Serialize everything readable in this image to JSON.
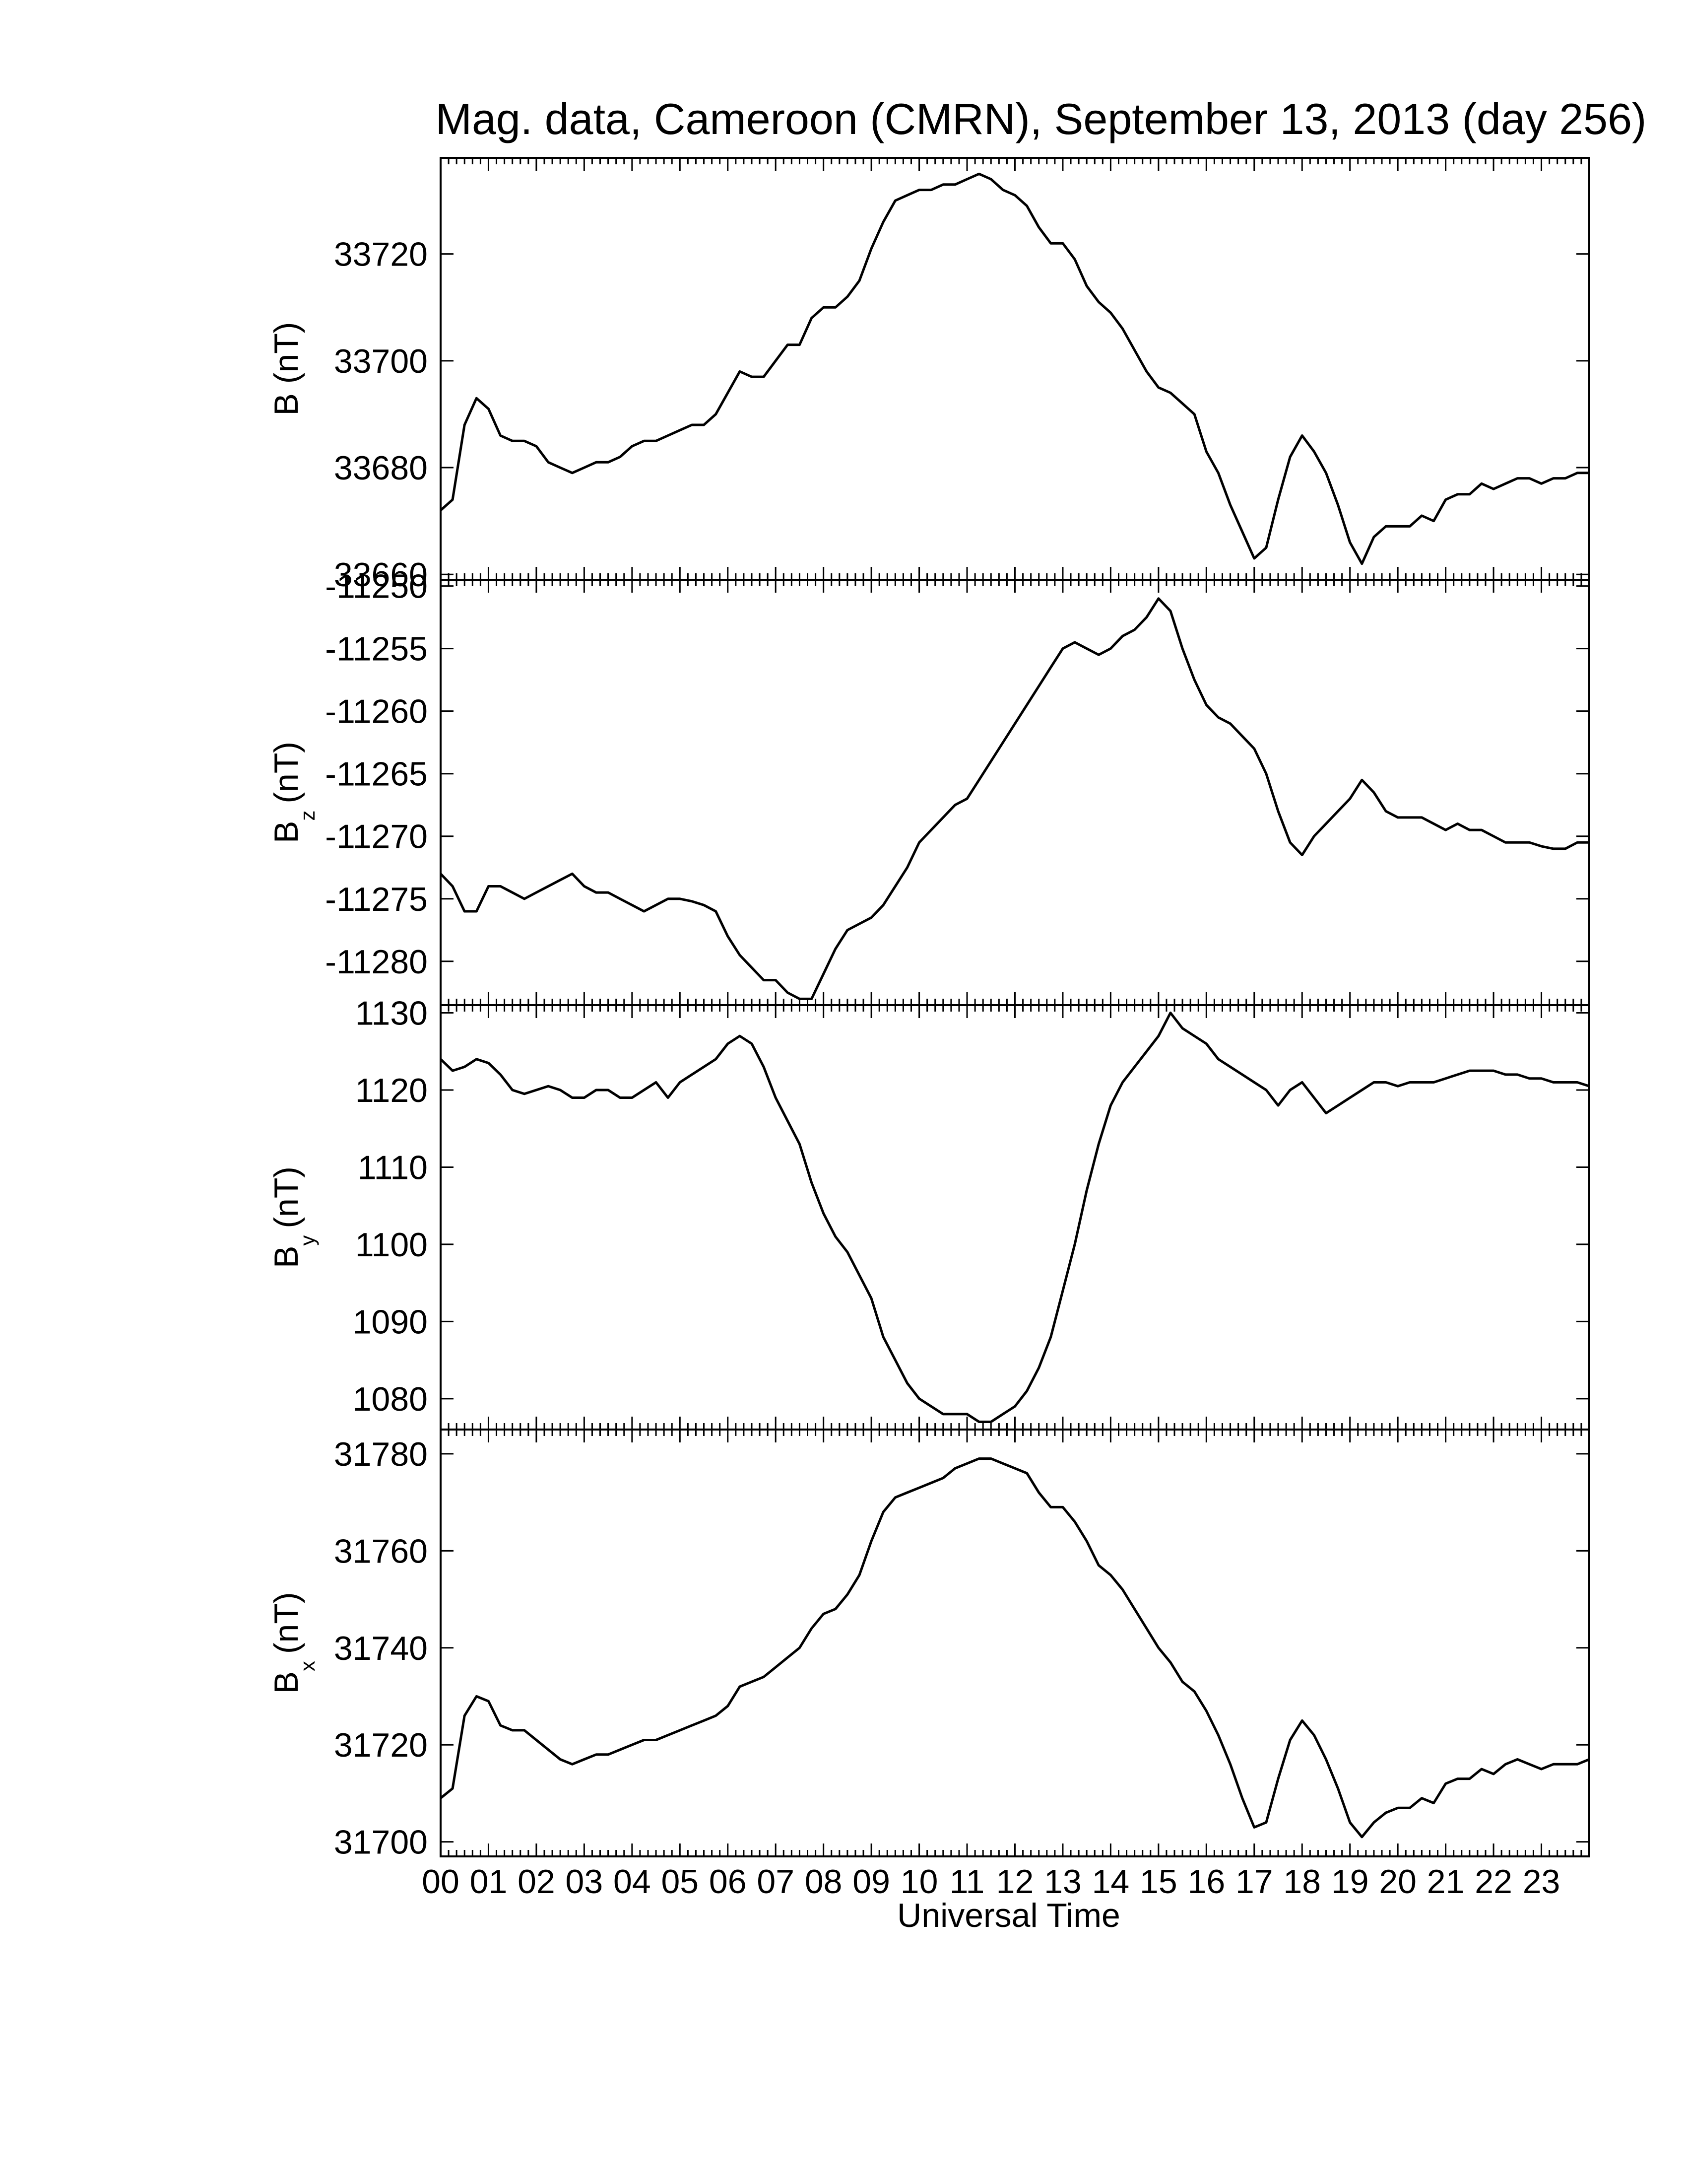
{
  "chart_data": {
    "type": "line",
    "title": "Mag. data, Cameroon (CMRN), September 13, 2013 (day 256)",
    "xlabel": "Universal Time",
    "x_tick_labels": [
      "00",
      "01",
      "02",
      "03",
      "04",
      "05",
      "06",
      "07",
      "08",
      "09",
      "10",
      "11",
      "12",
      "13",
      "14",
      "15",
      "16",
      "17",
      "18",
      "19",
      "20",
      "21",
      "22",
      "23"
    ],
    "xlim": [
      0,
      24
    ],
    "panels": [
      {
        "ylabel_main": "B (nT)",
        "ylabel_sub": "",
        "ylim": [
          33659,
          33738
        ],
        "yticks": [
          33660,
          33680,
          33700,
          33720
        ],
        "x": [
          0,
          0.25,
          0.5,
          0.75,
          1.0,
          1.25,
          1.5,
          1.75,
          2.0,
          2.25,
          2.5,
          2.75,
          3.0,
          3.25,
          3.5,
          3.75,
          4.0,
          4.25,
          4.5,
          4.75,
          5.0,
          5.25,
          5.5,
          5.75,
          6.0,
          6.25,
          6.5,
          6.75,
          7.0,
          7.25,
          7.5,
          7.75,
          8.0,
          8.25,
          8.5,
          8.75,
          9.0,
          9.25,
          9.5,
          9.75,
          10.0,
          10.25,
          10.5,
          10.75,
          11.0,
          11.25,
          11.5,
          11.75,
          12.0,
          12.25,
          12.5,
          12.75,
          13.0,
          13.25,
          13.5,
          13.75,
          14.0,
          14.25,
          14.5,
          14.75,
          15.0,
          15.25,
          15.5,
          15.75,
          16.0,
          16.25,
          16.5,
          16.75,
          17.0,
          17.25,
          17.5,
          17.75,
          18.0,
          18.25,
          18.5,
          18.75,
          19.0,
          19.25,
          19.5,
          19.75,
          20.0,
          20.25,
          20.5,
          20.75,
          21.0,
          21.25,
          21.5,
          21.75,
          22.0,
          22.25,
          22.5,
          22.75,
          23.0,
          23.25,
          23.5,
          23.75,
          24.0
        ],
        "values": [
          33672,
          33674,
          33688,
          33693,
          33691,
          33686,
          33685,
          33685,
          33684,
          33681,
          33680,
          33679,
          33680,
          33681,
          33681,
          33682,
          33684,
          33685,
          33685,
          33686,
          33687,
          33688,
          33688,
          33690,
          33694,
          33698,
          33697,
          33697,
          33700,
          33703,
          33703,
          33708,
          33710,
          33710,
          33712,
          33715,
          33721,
          33726,
          33730,
          33731,
          33732,
          33732,
          33733,
          33733,
          33734,
          33735,
          33734,
          33732,
          33731,
          33729,
          33725,
          33722,
          33722,
          33719,
          33714,
          33711,
          33709,
          33706,
          33702,
          33698,
          33695,
          33694,
          33692,
          33690,
          33683,
          33679,
          33673,
          33668,
          33663,
          33665,
          33674,
          33682,
          33686,
          33683,
          33679,
          33673,
          33666,
          33662,
          33667,
          33669,
          33669,
          33669,
          33671,
          33670,
          33674,
          33675,
          33675,
          33677,
          33676,
          33677,
          33678,
          33678,
          33677,
          33678,
          33678,
          33679,
          33679
        ]
      },
      {
        "ylabel_main": "B",
        "ylabel_sub": "z",
        "ylabel_unit": "(nT)",
        "ylim": [
          -11283.5,
          -11249.5
        ],
        "yticks": [
          -11250,
          -11255,
          -11260,
          -11265,
          -11270,
          -11275,
          -11280
        ],
        "x": [
          0,
          0.25,
          0.5,
          0.75,
          1.0,
          1.25,
          1.5,
          1.75,
          2.0,
          2.25,
          2.5,
          2.75,
          3.0,
          3.25,
          3.5,
          3.75,
          4.0,
          4.25,
          4.5,
          4.75,
          5.0,
          5.25,
          5.5,
          5.75,
          6.0,
          6.25,
          6.5,
          6.75,
          7.0,
          7.25,
          7.5,
          7.75,
          8.0,
          8.25,
          8.5,
          8.75,
          9.0,
          9.25,
          9.5,
          9.75,
          10.0,
          10.25,
          10.5,
          10.75,
          11.0,
          11.25,
          11.5,
          11.75,
          12.0,
          12.25,
          12.5,
          12.75,
          13.0,
          13.25,
          13.5,
          13.75,
          14.0,
          14.25,
          14.5,
          14.75,
          15.0,
          15.25,
          15.5,
          15.75,
          16.0,
          16.25,
          16.5,
          16.75,
          17.0,
          17.25,
          17.5,
          17.75,
          18.0,
          18.25,
          18.5,
          18.75,
          19.0,
          19.25,
          19.5,
          19.75,
          20.0,
          20.25,
          20.5,
          20.75,
          21.0,
          21.25,
          21.5,
          21.75,
          22.0,
          22.25,
          22.5,
          22.75,
          23.0,
          23.25,
          23.5,
          23.75,
          24.0
        ],
        "values": [
          -11273,
          -11274,
          -11276,
          -11276,
          -11274,
          -11274,
          -11274.5,
          -11275,
          -11274.5,
          -11274,
          -11273.5,
          -11273,
          -11274,
          -11274.5,
          -11274.5,
          -11275,
          -11275.5,
          -11276,
          -11275.5,
          -11275,
          -11275,
          -11275.2,
          -11275.5,
          -11276,
          -11278,
          -11279.5,
          -11280.5,
          -11281.5,
          -11281.5,
          -11282.5,
          -11283,
          -11283,
          -11281,
          -11279,
          -11277.5,
          -11277,
          -11276.5,
          -11275.5,
          -11274,
          -11272.5,
          -11270.5,
          -11269.5,
          -11268.5,
          -11267.5,
          -11267,
          -11265.5,
          -11264,
          -11262.5,
          -11261,
          -11259.5,
          -11258,
          -11256.5,
          -11255,
          -11254.5,
          -11255,
          -11255.5,
          -11255,
          -11254,
          -11253.5,
          -11252.5,
          -11251,
          -11252,
          -11255,
          -11257.5,
          -11259.5,
          -11260.5,
          -11261,
          -11262,
          -11263,
          -11265,
          -11268,
          -11270.5,
          -11271.5,
          -11270,
          -11269,
          -11268,
          -11267,
          -11265.5,
          -11266.5,
          -11268,
          -11268.5,
          -11268.5,
          -11268.5,
          -11269,
          -11269.5,
          -11269,
          -11269.5,
          -11269.5,
          -11270,
          -11270.5,
          -11270.5,
          -11270.5,
          -11270.8,
          -11271,
          -11271,
          -11270.5,
          -11270.5
        ]
      },
      {
        "ylabel_main": "B",
        "ylabel_sub": "y",
        "ylabel_unit": "(nT)",
        "ylim": [
          1076,
          1131
        ],
        "yticks": [
          1080,
          1090,
          1100,
          1110,
          1120,
          1130
        ],
        "x": [
          0,
          0.25,
          0.5,
          0.75,
          1.0,
          1.25,
          1.5,
          1.75,
          2.0,
          2.25,
          2.5,
          2.75,
          3.0,
          3.25,
          3.5,
          3.75,
          4.0,
          4.25,
          4.5,
          4.75,
          5.0,
          5.25,
          5.5,
          5.75,
          6.0,
          6.25,
          6.5,
          6.75,
          7.0,
          7.25,
          7.5,
          7.75,
          8.0,
          8.25,
          8.5,
          8.75,
          9.0,
          9.25,
          9.5,
          9.75,
          10.0,
          10.25,
          10.5,
          10.75,
          11.0,
          11.25,
          11.5,
          11.75,
          12.0,
          12.25,
          12.5,
          12.75,
          13.0,
          13.25,
          13.5,
          13.75,
          14.0,
          14.25,
          14.5,
          14.75,
          15.0,
          15.25,
          15.5,
          15.75,
          16.0,
          16.25,
          16.5,
          16.75,
          17.0,
          17.25,
          17.5,
          17.75,
          18.0,
          18.25,
          18.5,
          18.75,
          19.0,
          19.25,
          19.5,
          19.75,
          20.0,
          20.25,
          20.5,
          20.75,
          21.0,
          21.25,
          21.5,
          21.75,
          22.0,
          22.25,
          22.5,
          22.75,
          23.0,
          23.25,
          23.5,
          23.75,
          24.0
        ],
        "values": [
          1124,
          1122.5,
          1123,
          1124,
          1123.5,
          1122,
          1120,
          1119.5,
          1120,
          1120.5,
          1120,
          1119,
          1119,
          1120,
          1120,
          1119,
          1119,
          1120,
          1121,
          1119,
          1121,
          1122,
          1123,
          1124,
          1126,
          1127,
          1126,
          1123,
          1119,
          1116,
          1113,
          1108,
          1104,
          1101,
          1099,
          1096,
          1093,
          1088,
          1085,
          1082,
          1080,
          1079,
          1078,
          1078,
          1078,
          1077,
          1077,
          1078,
          1079,
          1081,
          1084,
          1088,
          1094,
          1100,
          1107,
          1113,
          1118,
          1121,
          1123,
          1125,
          1127,
          1130,
          1128,
          1127,
          1126,
          1124,
          1123,
          1122,
          1121,
          1120,
          1118,
          1120,
          1121,
          1119,
          1117,
          1118,
          1119,
          1120,
          1121,
          1121,
          1120.5,
          1121,
          1121,
          1121,
          1121.5,
          1122,
          1122.5,
          1122.5,
          1122.5,
          1122,
          1122,
          1121.5,
          1121.5,
          1121,
          1121,
          1121,
          1120.5
        ]
      },
      {
        "ylabel_main": "B",
        "ylabel_sub": "x",
        "ylabel_unit": "(nT)",
        "ylim": [
          31697,
          31785
        ],
        "yticks": [
          31700,
          31720,
          31740,
          31760,
          31780
        ],
        "x": [
          0,
          0.25,
          0.5,
          0.75,
          1.0,
          1.25,
          1.5,
          1.75,
          2.0,
          2.25,
          2.5,
          2.75,
          3.0,
          3.25,
          3.5,
          3.75,
          4.0,
          4.25,
          4.5,
          4.75,
          5.0,
          5.25,
          5.5,
          5.75,
          6.0,
          6.25,
          6.5,
          6.75,
          7.0,
          7.25,
          7.5,
          7.75,
          8.0,
          8.25,
          8.5,
          8.75,
          9.0,
          9.25,
          9.5,
          9.75,
          10.0,
          10.25,
          10.5,
          10.75,
          11.0,
          11.25,
          11.5,
          11.75,
          12.0,
          12.25,
          12.5,
          12.75,
          13.0,
          13.25,
          13.5,
          13.75,
          14.0,
          14.25,
          14.5,
          14.75,
          15.0,
          15.25,
          15.5,
          15.75,
          16.0,
          16.25,
          16.5,
          16.75,
          17.0,
          17.25,
          17.5,
          17.75,
          18.0,
          18.25,
          18.5,
          18.75,
          19.0,
          19.25,
          19.5,
          19.75,
          20.0,
          20.25,
          20.5,
          20.75,
          21.0,
          21.25,
          21.5,
          21.75,
          22.0,
          22.25,
          22.5,
          22.75,
          23.0,
          23.25,
          23.5,
          23.75,
          24.0
        ],
        "values": [
          31709,
          31711,
          31726,
          31730,
          31729,
          31724,
          31723,
          31723,
          31721,
          31719,
          31717,
          31716,
          31717,
          31718,
          31718,
          31719,
          31720,
          31721,
          31721,
          31722,
          31723,
          31724,
          31725,
          31726,
          31728,
          31732,
          31733,
          31734,
          31736,
          31738,
          31740,
          31744,
          31747,
          31748,
          31751,
          31755,
          31762,
          31768,
          31771,
          31772,
          31773,
          31774,
          31775,
          31777,
          31778,
          31779,
          31779,
          31778,
          31777,
          31776,
          31772,
          31769,
          31769,
          31766,
          31762,
          31757,
          31755,
          31752,
          31748,
          31744,
          31740,
          31737,
          31733,
          31731,
          31727,
          31722,
          31716,
          31709,
          31703,
          31704,
          31713,
          31721,
          31725,
          31722,
          31717,
          31711,
          31704,
          31701,
          31704,
          31706,
          31707,
          31707,
          31709,
          31708,
          31712,
          31713,
          31713,
          31715,
          31714,
          31716,
          31717,
          31716,
          31715,
          31716,
          31716,
          31716,
          31717
        ]
      }
    ]
  }
}
